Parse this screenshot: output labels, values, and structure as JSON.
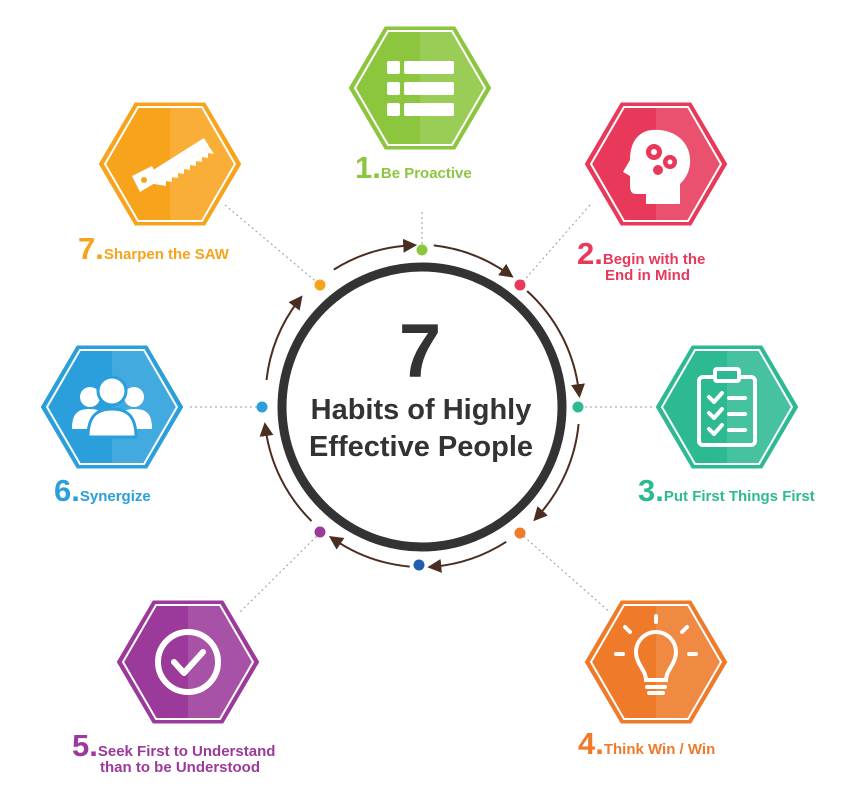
{
  "center": {
    "number": "7",
    "title_line1": "Habits of Highly",
    "title_line2": "Effective People"
  },
  "habits": [
    {
      "number": "1.",
      "lines": [
        "Be Proactive"
      ],
      "color": "#8cc63f",
      "icon": "list-icon"
    },
    {
      "number": "2.",
      "lines": [
        "Begin with the",
        "End in Mind"
      ],
      "color": "#e8395b",
      "icon": "head-gears-icon"
    },
    {
      "number": "3.",
      "lines": [
        "Put First Things First"
      ],
      "color": "#2dba93",
      "icon": "clipboard-checklist-icon"
    },
    {
      "number": "4.",
      "lines": [
        "Think Win / Win"
      ],
      "color": "#ee7a2a",
      "icon": "lightbulb-icon"
    },
    {
      "number": "5.",
      "lines": [
        "Seek First to Understand",
        "than to be Understood"
      ],
      "color": "#9b3a9b",
      "icon": "checkmark-circle-icon"
    },
    {
      "number": "6.",
      "lines": [
        "Synergize"
      ],
      "color": "#2a9fdc",
      "icon": "people-group-icon"
    },
    {
      "number": "7.",
      "lines": [
        "Sharpen the SAW"
      ],
      "color": "#f7a31c",
      "icon": "saw-icon"
    }
  ]
}
